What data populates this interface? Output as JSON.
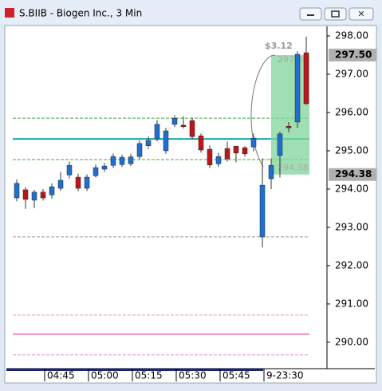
{
  "window": {
    "title": "S.BIIB - Biogen Inc., 3 Min"
  },
  "chart_data": {
    "type": "candlestick",
    "open": [
      293.77,
      293.98,
      293.71,
      293.92,
      293.85,
      294.02,
      294.37,
      294.31,
      294.02,
      294.35,
      294.52,
      294.62,
      294.64,
      294.66,
      294.85,
      295.13,
      295.31,
      295.0,
      295.69,
      295.67,
      295.79,
      295.39,
      295.04,
      294.66,
      295.06,
      295.12,
      295.08,
      295.1,
      292.75,
      294.27,
      294.88,
      295.64,
      295.75,
      297.56
    ],
    "high": [
      294.25,
      294.05,
      293.98,
      294.0,
      294.15,
      294.45,
      294.72,
      294.4,
      294.38,
      294.64,
      294.68,
      294.93,
      294.9,
      294.92,
      295.27,
      295.37,
      295.8,
      295.6,
      295.93,
      295.9,
      295.86,
      295.45,
      295.14,
      294.95,
      295.24,
      295.05,
      295.12,
      295.45,
      294.8,
      294.8,
      295.5,
      295.75,
      297.6,
      297.98
    ],
    "low": [
      293.68,
      293.48,
      293.5,
      293.7,
      293.75,
      293.95,
      294.28,
      293.95,
      293.95,
      294.3,
      294.45,
      294.55,
      294.58,
      294.6,
      294.78,
      295.05,
      295.25,
      294.92,
      295.62,
      295.58,
      295.3,
      294.95,
      294.55,
      294.58,
      294.72,
      294.7,
      294.85,
      294.98,
      292.48,
      294.0,
      294.3,
      295.48,
      295.6,
      296.2
    ],
    "close": [
      294.15,
      293.73,
      293.92,
      293.77,
      294.06,
      294.23,
      294.62,
      294.02,
      294.31,
      294.56,
      294.6,
      294.85,
      294.83,
      294.84,
      295.19,
      295.27,
      295.69,
      295.52,
      295.85,
      295.63,
      295.37,
      295.02,
      294.63,
      294.85,
      294.79,
      294.94,
      294.92,
      295.33,
      294.1,
      294.62,
      295.44,
      295.6,
      297.52,
      296.23
    ],
    "up_color": "#1e6fd0",
    "down_color": "#c0141a",
    "ylim": [
      289.31,
      298.25
    ],
    "yticks": [
      {
        "value": 290,
        "label": "290.00"
      },
      {
        "value": 291,
        "label": "291.00"
      },
      {
        "value": 292,
        "label": "292.00"
      },
      {
        "value": 293,
        "label": "293.00"
      },
      {
        "value": 294,
        "label": "294.00"
      },
      {
        "value": 295,
        "label": "295.00"
      },
      {
        "value": 296,
        "label": "296.00"
      },
      {
        "value": 297,
        "label": "297.00"
      },
      {
        "value": 298,
        "label": "298.00"
      }
    ],
    "xticks": [
      {
        "value": 3,
        "label": "04:45"
      },
      {
        "value": 8,
        "label": "05:00"
      },
      {
        "value": 13,
        "label": "05:15"
      },
      {
        "value": 18,
        "label": "05:30"
      },
      {
        "value": 23,
        "label": "05:45"
      },
      {
        "value": 28,
        "label": "9-23:30"
      }
    ],
    "levels": [
      {
        "value": 295.85,
        "color": "#3cae3c",
        "style": "dashed"
      },
      {
        "value": 295.31,
        "color": "#1ea8b4",
        "style": "solid"
      },
      {
        "value": 294.77,
        "color": "#3cae3c",
        "style": "dashed"
      },
      {
        "value": 292.75,
        "color": "#999999",
        "style": "dashed"
      },
      {
        "value": 290.71,
        "color": "#e08ccc",
        "style": "dashed"
      },
      {
        "value": 290.21,
        "color": "#f08cc0",
        "style": "solid"
      },
      {
        "value": 289.67,
        "color": "#e08ccc",
        "style": "dashed"
      }
    ],
    "price_markers": [
      {
        "value": 297.5,
        "label": "297.50"
      },
      {
        "value": 294.38,
        "label": "294.38"
      }
    ],
    "measure": {
      "from": 294.38,
      "to": 297.5,
      "from_label": "294.38",
      "to_label": "297.50",
      "change_label": "$3.12",
      "color": "#7fd49a"
    }
  }
}
